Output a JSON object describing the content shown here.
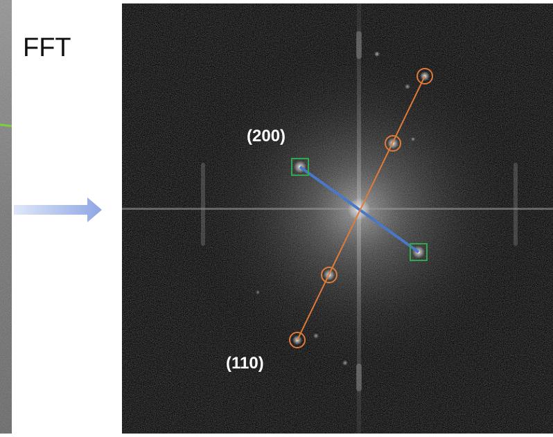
{
  "title": "FFT",
  "reflections": {
    "label_200": "(200)",
    "label_110": "(110)"
  },
  "colors": {
    "line_200": "#4a78c8",
    "line_110": "#e07b39",
    "square_200": "#2fa84f",
    "circle_110": "#e07b39",
    "arrow": "#8ea6e4",
    "green_marker": "#7bd13a"
  },
  "icons": {
    "arrow": "right-arrow-icon"
  }
}
